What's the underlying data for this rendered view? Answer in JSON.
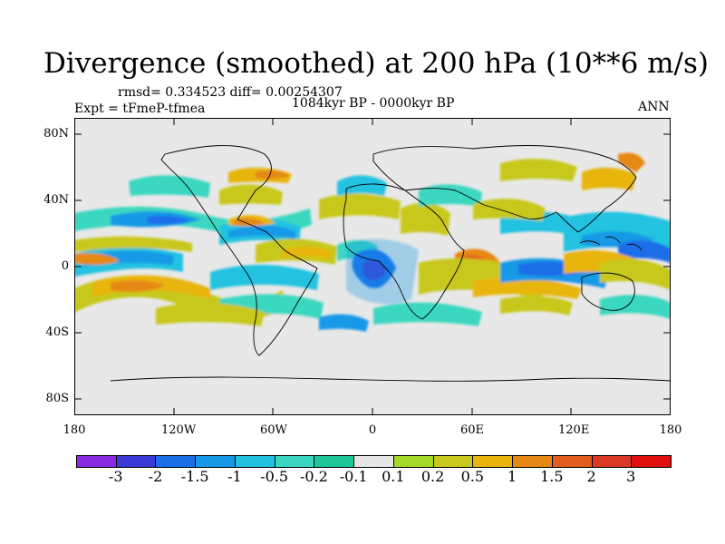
{
  "title": "Divergence (smoothed) at 200 hPa (10**6 m/s)",
  "stats": "rmsd= 0.334523 diff= 0.00254307",
  "experiment": "Expt = tFmeP-tfmea",
  "period": "1084kyr BP - 0000kyr BP",
  "season": "ANN",
  "lat_labels": [
    "80N",
    "40N",
    "0",
    "40S",
    "80S"
  ],
  "lon_labels": [
    "180",
    "120W",
    "60W",
    "0",
    "60E",
    "120E",
    "180"
  ],
  "colorbar": {
    "labels": [
      "-3",
      "-2",
      "-1.5",
      "-1",
      "-0.5",
      "-0.2",
      "-0.1",
      "0.1",
      "0.2",
      "0.5",
      "1",
      "1.5",
      "2",
      "3"
    ],
    "colors": [
      "#8a2be2",
      "#3b38d6",
      "#1b6ee8",
      "#1599e6",
      "#21c2e0",
      "#3ad7c0",
      "#1ec79a",
      "#e6e6e6",
      "#a6d82a",
      "#c8c81e",
      "#e8b50c",
      "#e68818",
      "#e25e1e",
      "#dc3826",
      "#e00f0f"
    ]
  }
}
